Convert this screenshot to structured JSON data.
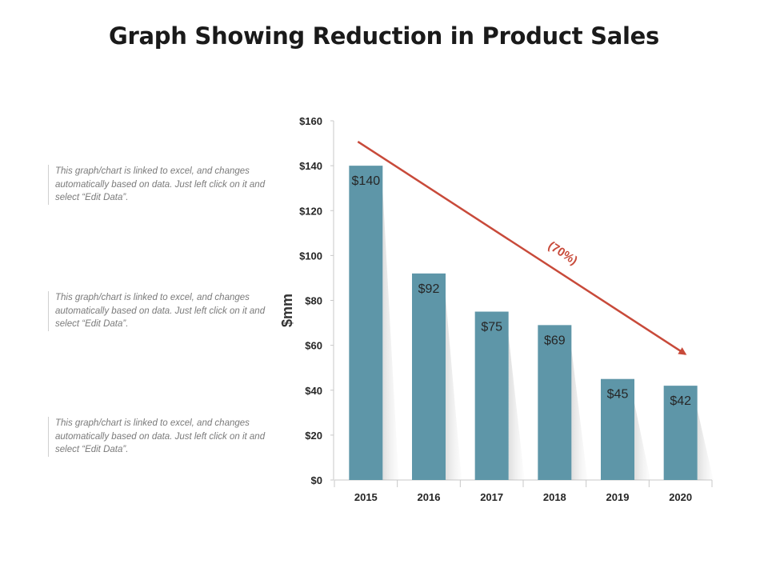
{
  "title": "Graph Showing Reduction in Product Sales",
  "notes": [
    "This graph/chart is linked to excel, and changes automatically based on data. Just left click on it and select “Edit Data”.",
    "This graph/chart is linked to excel, and changes automatically based on data. Just left click on it and select “Edit Data”.",
    "This graph/chart is linked to excel, and changes automatically based on data. Just left click on it and select “Edit Data”."
  ],
  "colors": {
    "bar": "#5e96a8",
    "trend": "#c84a3a"
  },
  "chart_data": {
    "type": "bar",
    "title": "",
    "xlabel": "",
    "ylabel": "$mm",
    "categories": [
      "2015",
      "2016",
      "2017",
      "2018",
      "2019",
      "2020"
    ],
    "values": [
      140,
      92,
      75,
      69,
      45,
      42
    ],
    "value_labels": [
      "$140",
      "$92",
      "$75",
      "$69",
      "$45",
      "$42"
    ],
    "ylim": [
      0,
      160
    ],
    "yticks": [
      0,
      20,
      40,
      60,
      80,
      100,
      120,
      140,
      160
    ],
    "ytick_labels": [
      "$0",
      "$20",
      "$40",
      "$60",
      "$80",
      "$100",
      "$120",
      "$140",
      "$160"
    ],
    "grid": false,
    "annotation": {
      "text": "(70%)",
      "type": "downward trend arrow",
      "from_category": "2015",
      "to_category": "2020",
      "from_value": 155,
      "to_value": 55
    }
  }
}
